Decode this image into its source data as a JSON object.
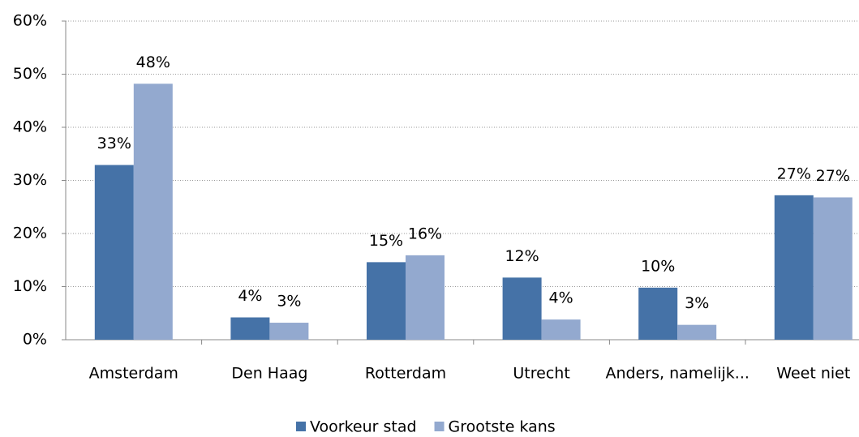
{
  "chart_data": {
    "type": "bar",
    "categories": [
      "Amsterdam",
      "Den Haag",
      "Rotterdam",
      "Utrecht",
      "Anders, namelijk...",
      "Weet niet"
    ],
    "series": [
      {
        "name": "Voorkeur stad",
        "color": "#4572a7",
        "values": [
          32.9,
          4.2,
          14.6,
          11.7,
          9.8,
          27.2
        ],
        "value_labels": [
          "33%",
          "4%",
          "15%",
          "12%",
          "10%",
          "27%"
        ]
      },
      {
        "name": "Grootste kans",
        "color": "#93a9cf",
        "values": [
          48.2,
          3.2,
          15.9,
          3.8,
          2.8,
          26.8
        ],
        "value_labels": [
          "48%",
          "3%",
          "16%",
          "4%",
          "3%",
          "27%"
        ]
      }
    ],
    "ylim": [
      0,
      60
    ],
    "yticks": [
      {
        "value": 0,
        "label": "0%"
      },
      {
        "value": 10,
        "label": "10%"
      },
      {
        "value": 20,
        "label": "20%"
      },
      {
        "value": 30,
        "label": "30%"
      },
      {
        "value": 40,
        "label": "40%"
      },
      {
        "value": 50,
        "label": "50%"
      },
      {
        "value": 60,
        "label": "60%"
      }
    ],
    "grid": true,
    "legend": "bottom"
  }
}
